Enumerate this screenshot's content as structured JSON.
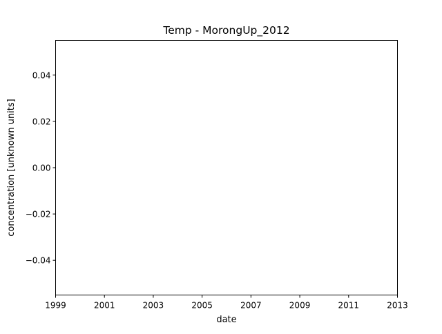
{
  "chart_data": {
    "type": "line",
    "title": "Temp - MorongUp_2012",
    "xlabel": "date",
    "ylabel": "concentration [unknown units]",
    "x_ticks": [
      "1999",
      "2001",
      "2003",
      "2005",
      "2007",
      "2009",
      "2011",
      "2013"
    ],
    "y_ticks": [
      "0.04",
      "0.02",
      "0.00",
      "−0.02",
      "−0.04"
    ],
    "y_tick_values": [
      0.04,
      0.02,
      0.0,
      -0.02,
      -0.04
    ],
    "xlim": [
      "1999",
      "2013"
    ],
    "ylim": [
      -0.055,
      0.055
    ],
    "series": [],
    "grid": false,
    "legend": "none"
  },
  "colors": {
    "axis": "#000000",
    "background": "#ffffff"
  }
}
